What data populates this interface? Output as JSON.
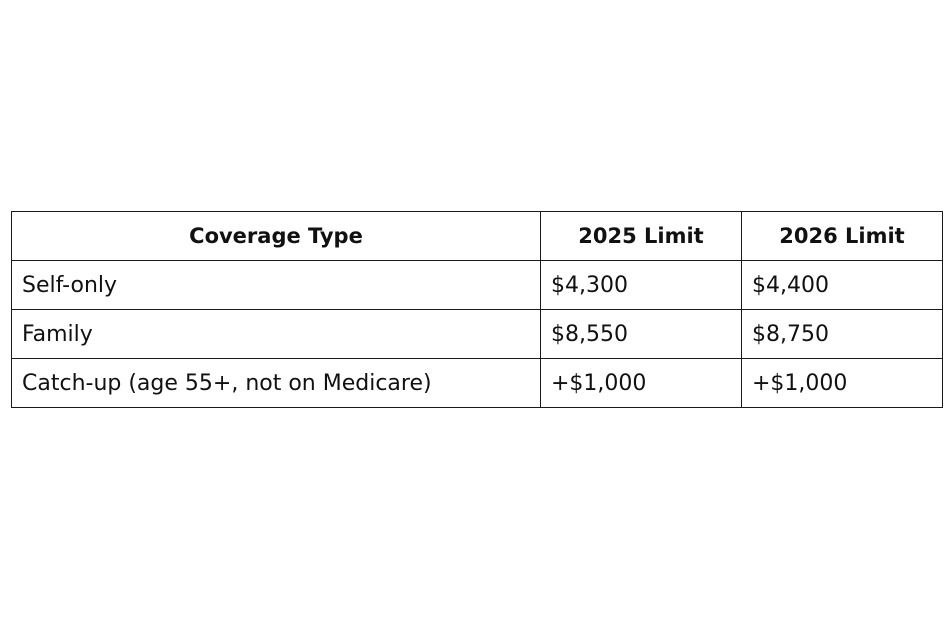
{
  "table": {
    "headers": [
      "Coverage Type",
      "2025 Limit",
      "2026 Limit"
    ],
    "rows": [
      [
        "Self-only",
        "$4,300",
        "$4,400"
      ],
      [
        "Family",
        "$8,550",
        "$8,750"
      ],
      [
        "Catch-up (age 55+, not on Medicare)",
        "+$1,000",
        "+$1,000"
      ]
    ]
  }
}
